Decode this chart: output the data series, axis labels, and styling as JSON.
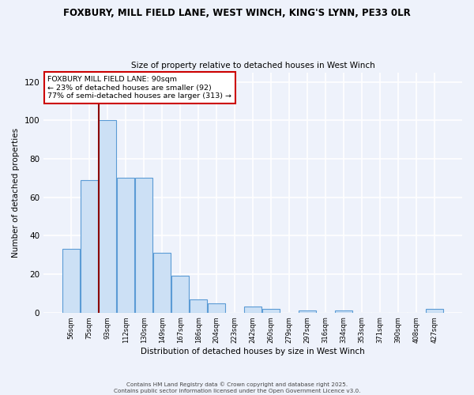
{
  "title": "FOXBURY, MILL FIELD LANE, WEST WINCH, KING'S LYNN, PE33 0LR",
  "subtitle": "Size of property relative to detached houses in West Winch",
  "xlabel": "Distribution of detached houses by size in West Winch",
  "ylabel": "Number of detached properties",
  "bar_labels": [
    "56sqm",
    "75sqm",
    "93sqm",
    "112sqm",
    "130sqm",
    "149sqm",
    "167sqm",
    "186sqm",
    "204sqm",
    "223sqm",
    "242sqm",
    "260sqm",
    "279sqm",
    "297sqm",
    "316sqm",
    "334sqm",
    "353sqm",
    "371sqm",
    "390sqm",
    "408sqm",
    "427sqm"
  ],
  "bar_values": [
    33,
    69,
    100,
    70,
    70,
    31,
    19,
    7,
    5,
    0,
    3,
    2,
    0,
    1,
    0,
    1,
    0,
    0,
    0,
    0,
    2
  ],
  "bar_color": "#cce0f5",
  "bar_edge_color": "#5b9bd5",
  "vline_color": "#8b0000",
  "annotation_title": "FOXBURY MILL FIELD LANE: 90sqm",
  "annotation_line1": "← 23% of detached houses are smaller (92)",
  "annotation_line2": "77% of semi-detached houses are larger (313) →",
  "annotation_box_color": "#ffffff",
  "annotation_box_edge": "#cc0000",
  "ylim": [
    0,
    125
  ],
  "yticks": [
    0,
    20,
    40,
    60,
    80,
    100,
    120
  ],
  "bg_color": "#eef2fb",
  "grid_color": "#ffffff",
  "footer1": "Contains HM Land Registry data © Crown copyright and database right 2025.",
  "footer2": "Contains public sector information licensed under the Open Government Licence v3.0."
}
